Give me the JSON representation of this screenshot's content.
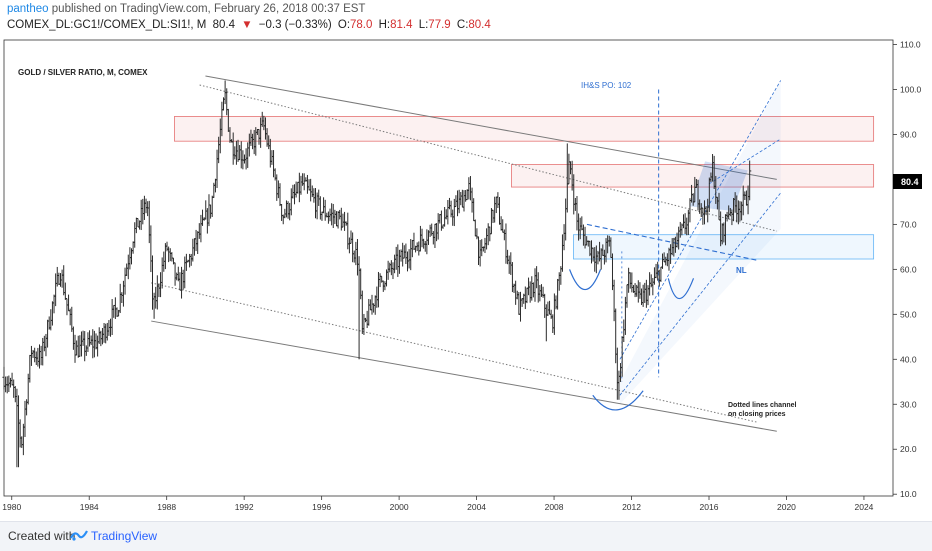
{
  "header": {
    "user": "pantheo",
    "published": "published on TradingView.com, February 26, 2018 00:37 EST",
    "symbol": "COMEX_DL:GC1!/COMEX_DL:SI1!, M",
    "last": "80.4",
    "change": "−0.3 (−0.33%)",
    "open": "78.0",
    "high": "81.4",
    "low": "77.9",
    "close": "80.4",
    "down_marker": "▼",
    "o_label": "O:",
    "h_label": "H:",
    "l_label": "L:",
    "c_label": "C:"
  },
  "chart_data": {
    "type": "ohlc",
    "title": "GOLD / SILVER RATIO, M, COMEX",
    "x_ticks": [
      "1980",
      "1984",
      "1988",
      "1992",
      "1996",
      "2000",
      "2004",
      "2008",
      "2012",
      "2016",
      "2020",
      "2024"
    ],
    "y_ticks": [
      "10.0",
      "20.0",
      "30.0",
      "40.0",
      "50.0",
      "60.0",
      "70.0",
      "80.0",
      "90.0",
      "100.0",
      "110.0"
    ],
    "xlim": [
      1979.6,
      2025.5
    ],
    "ylim": [
      9.6,
      111
    ],
    "current_price_label": "80.4",
    "annotations": {
      "ihs_po": "IH&S PO: 102",
      "neckline": "NL",
      "channel_note_1": "Dotted lines channel",
      "channel_note_2": "on closing prices"
    },
    "approx_series": {
      "x": [
        1979.6,
        1980.1,
        1980.5,
        1981.0,
        1981.5,
        1982.5,
        1983.3,
        1984.5,
        1985.5,
        1986.3,
        1987.0,
        1987.3,
        1988.0,
        1988.6,
        1989.6,
        1990.3,
        1991.0,
        1991.3,
        1992.0,
        1993.0,
        1994.0,
        1995.0,
        1996.0,
        1997.0,
        1997.9,
        1998.1,
        1999.0,
        2000.0,
        2001.0,
        2002.0,
        2003.0,
        2003.6,
        2004.2,
        2005.0,
        2006.2,
        2007.0,
        2007.9,
        2008.3,
        2008.8,
        2009.2,
        2009.7,
        2010.3,
        2010.9,
        2011.3,
        2011.8,
        2012.4,
        2013.0,
        2013.5,
        2014.2,
        2014.8,
        2015.3,
        2015.8,
        2016.2,
        2016.6,
        2017.0,
        2017.4,
        2017.9,
        2018.1
      ],
      "close": [
        36,
        33,
        21,
        42,
        40,
        60,
        42,
        44,
        52,
        68,
        75,
        51,
        65,
        56,
        67,
        74,
        99,
        88,
        85,
        92,
        72,
        79,
        73,
        71,
        62,
        46,
        57,
        62,
        66,
        70,
        74,
        78,
        62,
        75,
        51,
        57,
        48,
        59,
        84,
        70,
        66,
        62,
        66,
        33,
        58,
        53,
        56,
        60,
        65,
        70,
        78,
        72,
        83,
        67,
        73,
        74,
        75,
        80.4
      ]
    },
    "reference_values": {
      "spike_1991_high": 102,
      "spike_2008_high": 88,
      "low_1980": 16,
      "low_2011": 31,
      "last_close": 80.4
    },
    "zones": [
      {
        "name": "upper-resistance-zone",
        "ylow": 88.5,
        "yhigh": 94.0,
        "color": "#e57373"
      },
      {
        "name": "mid-resistance-zone",
        "ylow": 78.3,
        "yhigh": 83.3,
        "color": "#e57373"
      },
      {
        "name": "neckline-support-zone",
        "ylow": 62.3,
        "yhigh": 67.7,
        "color": "#64b5f6"
      }
    ],
    "colors": {
      "bars": "#2a2a2a",
      "trendline": "#7a7a7a",
      "blue": "#2f6fd1",
      "price_tag": "#000000"
    }
  },
  "footer": {
    "created_with": "Created with",
    "brand": "TradingView"
  }
}
